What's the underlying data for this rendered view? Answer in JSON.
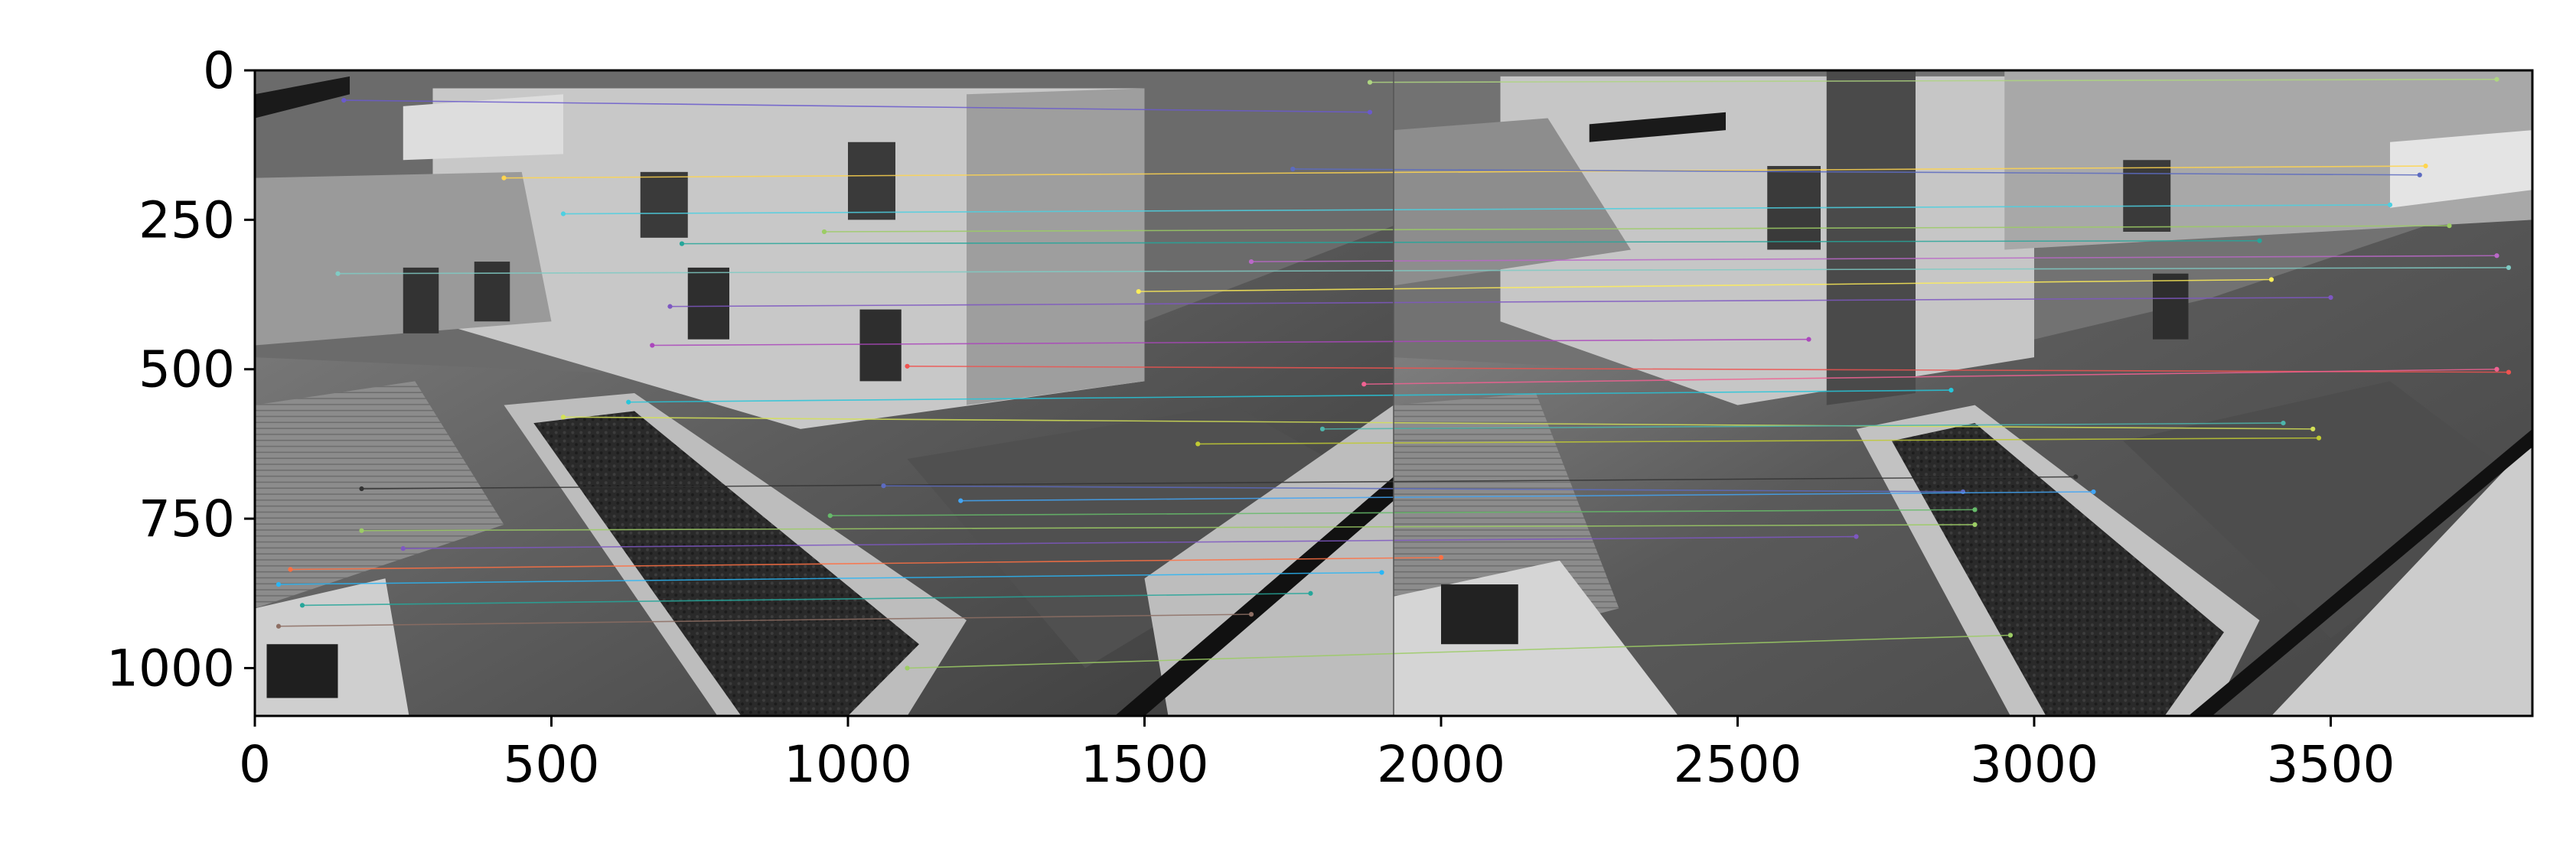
{
  "chart_data": {
    "type": "image",
    "title": "",
    "xlabel": "",
    "ylabel": "",
    "xlim": [
      0,
      3840
    ],
    "ylim": [
      1080,
      0
    ],
    "grid": false,
    "xticks": [
      {
        "value": 0,
        "label": "0"
      },
      {
        "value": 500,
        "label": "500"
      },
      {
        "value": 1000,
        "label": "1000"
      },
      {
        "value": 1500,
        "label": "1500"
      },
      {
        "value": 2000,
        "label": "2000"
      },
      {
        "value": 2500,
        "label": "2500"
      },
      {
        "value": 3000,
        "label": "3000"
      },
      {
        "value": 3500,
        "label": "3500"
      }
    ],
    "yticks": [
      {
        "value": 0,
        "label": "0"
      },
      {
        "value": 250,
        "label": "250"
      },
      {
        "value": 500,
        "label": "500"
      },
      {
        "value": 750,
        "label": "750"
      },
      {
        "value": 1000,
        "label": "1000"
      }
    ],
    "image_split_x": 1920,
    "match_lines": [
      {
        "x1": 150,
        "y1": 50,
        "x2": 1880,
        "y2": 70,
        "color": "#6a5acd"
      },
      {
        "x1": 420,
        "y1": 180,
        "x2": 3660,
        "y2": 160,
        "color": "#ffd54f"
      },
      {
        "x1": 520,
        "y1": 240,
        "x2": 3600,
        "y2": 225,
        "color": "#4dd0e1"
      },
      {
        "x1": 960,
        "y1": 270,
        "x2": 3700,
        "y2": 260,
        "color": "#9ccc65"
      },
      {
        "x1": 720,
        "y1": 290,
        "x2": 3380,
        "y2": 285,
        "color": "#26a69a"
      },
      {
        "x1": 140,
        "y1": 340,
        "x2": 3800,
        "y2": 330,
        "color": "#80cbc4"
      },
      {
        "x1": 1490,
        "y1": 370,
        "x2": 3400,
        "y2": 350,
        "color": "#ffee58"
      },
      {
        "x1": 700,
        "y1": 395,
        "x2": 3500,
        "y2": 380,
        "color": "#7e57c2"
      },
      {
        "x1": 670,
        "y1": 460,
        "x2": 2620,
        "y2": 450,
        "color": "#ab47bc"
      },
      {
        "x1": 1100,
        "y1": 495,
        "x2": 3800,
        "y2": 505,
        "color": "#ef5350"
      },
      {
        "x1": 630,
        "y1": 555,
        "x2": 2860,
        "y2": 535,
        "color": "#26c6da"
      },
      {
        "x1": 520,
        "y1": 580,
        "x2": 3470,
        "y2": 600,
        "color": "#d4e157"
      },
      {
        "x1": 1590,
        "y1": 625,
        "x2": 3480,
        "y2": 615,
        "color": "#c0ca33"
      },
      {
        "x1": 180,
        "y1": 700,
        "x2": 3070,
        "y2": 680,
        "color": "#333333"
      },
      {
        "x1": 1060,
        "y1": 695,
        "x2": 2880,
        "y2": 705,
        "color": "#5c6bc0"
      },
      {
        "x1": 1190,
        "y1": 720,
        "x2": 3100,
        "y2": 705,
        "color": "#42a5f5"
      },
      {
        "x1": 970,
        "y1": 745,
        "x2": 2900,
        "y2": 735,
        "color": "#66bb6a"
      },
      {
        "x1": 180,
        "y1": 770,
        "x2": 2900,
        "y2": 760,
        "color": "#9ccc65"
      },
      {
        "x1": 250,
        "y1": 800,
        "x2": 2700,
        "y2": 780,
        "color": "#7e57c2"
      },
      {
        "x1": 60,
        "y1": 835,
        "x2": 2000,
        "y2": 815,
        "color": "#ff7043"
      },
      {
        "x1": 40,
        "y1": 860,
        "x2": 1900,
        "y2": 840,
        "color": "#29b6f6"
      },
      {
        "x1": 80,
        "y1": 895,
        "x2": 1780,
        "y2": 875,
        "color": "#26a69a"
      },
      {
        "x1": 40,
        "y1": 930,
        "x2": 1680,
        "y2": 910,
        "color": "#8d6e63"
      },
      {
        "x1": 1100,
        "y1": 1000,
        "x2": 2960,
        "y2": 945,
        "color": "#9ccc65"
      },
      {
        "x1": 1880,
        "y1": 20,
        "x2": 3780,
        "y2": 15,
        "color": "#aed581"
      },
      {
        "x1": 1750,
        "y1": 165,
        "x2": 3650,
        "y2": 175,
        "color": "#5c6bc0"
      },
      {
        "x1": 1680,
        "y1": 320,
        "x2": 3780,
        "y2": 310,
        "color": "#ba68c8"
      },
      {
        "x1": 1870,
        "y1": 525,
        "x2": 3780,
        "y2": 500,
        "color": "#f06292"
      },
      {
        "x1": 1800,
        "y1": 600,
        "x2": 3420,
        "y2": 590,
        "color": "#4db6ac"
      }
    ]
  }
}
